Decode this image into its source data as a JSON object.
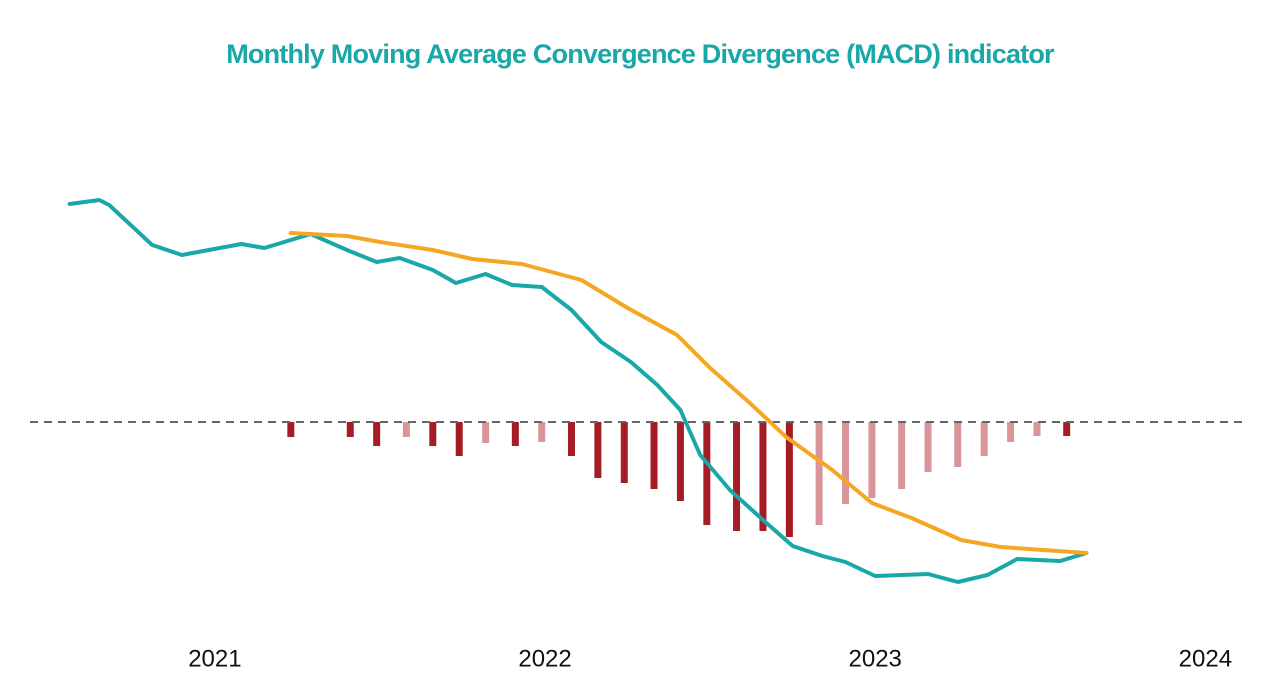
{
  "chart_data": {
    "type": "line",
    "title": "Monthly Moving Average Convergence Divergence (MACD) indicator",
    "xlim": [
      2020.44,
      2024.12
    ],
    "xticks": [
      2021,
      2022,
      2023,
      2024
    ],
    "ylim": [
      -2,
      3.2
    ],
    "lines": [
      {
        "color": "#1aa7a7",
        "x": [
          2020.56,
          2020.65,
          2020.68,
          2020.81,
          2020.9,
          2021.08,
          2021.15,
          2021.29,
          2021.4,
          2021.49,
          2021.56,
          2021.66,
          2021.73,
          2021.82,
          2021.9,
          2021.99,
          2022.08,
          2022.17,
          2022.26,
          2022.34,
          2022.41,
          2022.47,
          2022.56,
          2022.66,
          2022.75,
          2022.84,
          2022.91,
          2023.0,
          2023.16,
          2023.25,
          2023.34,
          2023.43,
          2023.56,
          2023.64
        ],
        "values": [
          2.18,
          2.22,
          2.17,
          1.77,
          1.67,
          1.78,
          1.74,
          1.88,
          1.72,
          1.6,
          1.64,
          1.52,
          1.39,
          1.48,
          1.37,
          1.35,
          1.12,
          0.8,
          0.6,
          0.37,
          0.12,
          -0.33,
          -0.68,
          -0.98,
          -1.24,
          -1.34,
          -1.4,
          -1.54,
          -1.52,
          -1.6,
          -1.53,
          -1.37,
          -1.39,
          -1.31
        ]
      },
      {
        "color": "#f5a623",
        "x": [
          2021.23,
          2021.4,
          2021.5,
          2021.66,
          2021.78,
          2021.93,
          2022.11,
          2022.25,
          2022.4,
          2022.5,
          2022.62,
          2022.73,
          2022.87,
          2022.99,
          2023.11,
          2023.26,
          2023.38,
          2023.64
        ],
        "values": [
          1.89,
          1.86,
          1.8,
          1.72,
          1.63,
          1.58,
          1.42,
          1.14,
          0.87,
          0.54,
          0.19,
          -0.15,
          -0.48,
          -0.81,
          -0.96,
          -1.18,
          -1.25,
          -1.31
        ]
      }
    ],
    "histogram": {
      "x": [
        2021.23,
        2021.41,
        2021.49,
        2021.58,
        2021.66,
        2021.74,
        2021.82,
        2021.91,
        2021.99,
        2022.08,
        2022.16,
        2022.24,
        2022.33,
        2022.41,
        2022.49,
        2022.58,
        2022.66,
        2022.74,
        2022.83,
        2022.91,
        2022.99,
        2023.08,
        2023.16,
        2023.25,
        2023.33,
        2023.41,
        2023.49,
        2023.58
      ],
      "values": [
        -0.15,
        -0.15,
        -0.24,
        -0.15,
        -0.24,
        -0.34,
        -0.21,
        -0.24,
        -0.2,
        -0.34,
        -0.56,
        -0.61,
        -0.67,
        -0.79,
        -1.03,
        -1.09,
        -1.09,
        -1.15,
        -1.03,
        -0.82,
        -0.76,
        -0.67,
        -0.5,
        -0.45,
        -0.34,
        -0.2,
        -0.14,
        -0.14
      ],
      "colors": [
        "#a51c24",
        "#a51c24",
        "#a51c24",
        "#d9959a",
        "#a51c24",
        "#a51c24",
        "#d9959a",
        "#a51c24",
        "#d9959a",
        "#a51c24",
        "#a51c24",
        "#a51c24",
        "#a51c24",
        "#a51c24",
        "#a51c24",
        "#a51c24",
        "#a51c24",
        "#a51c24",
        "#d9959a",
        "#d9959a",
        "#d9959a",
        "#d9959a",
        "#d9959a",
        "#d9959a",
        "#d9959a",
        "#d9959a",
        "#d9959a",
        "#a51c24"
      ]
    }
  }
}
